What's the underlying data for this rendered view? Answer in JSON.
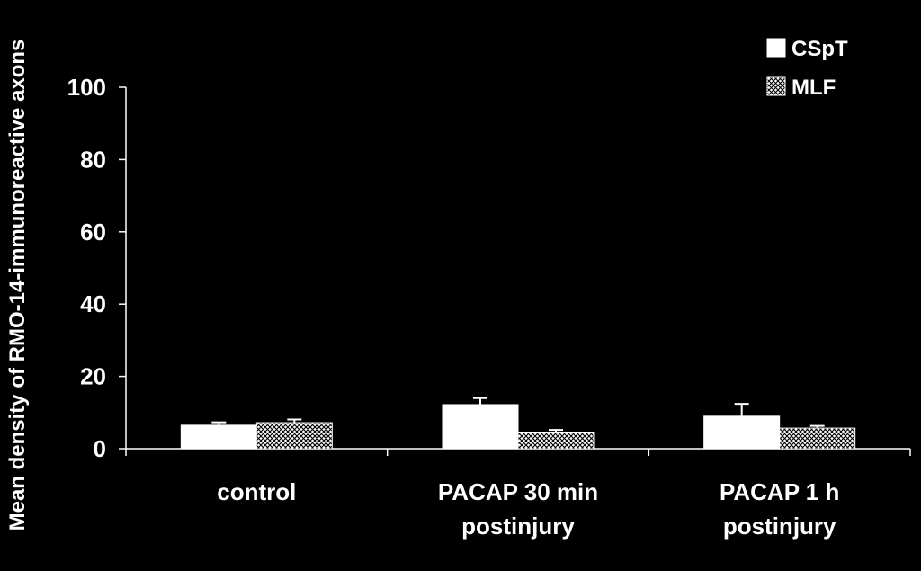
{
  "chart_data": {
    "type": "bar",
    "title": "",
    "ylabel": "Mean density of RMO-14-immunoreactive axons",
    "xlabel": "",
    "ylim": [
      0,
      100
    ],
    "yticks": [
      0,
      20,
      40,
      60,
      80,
      100
    ],
    "yticks_text": [
      "0",
      "20",
      "40",
      "60",
      "80",
      "100"
    ],
    "categories": [
      [
        "control"
      ],
      [
        "PACAP 30 min",
        "postinjury"
      ],
      [
        "PACAP 1 h",
        "postinjury"
      ]
    ],
    "series": [
      {
        "name": "CSpT",
        "values": [
          6.5,
          12.2,
          9.0
        ],
        "errors": [
          0.8,
          1.8,
          3.4
        ],
        "fill": "solid",
        "color": "#ffffff"
      },
      {
        "name": "MLF",
        "values": [
          7.2,
          4.6,
          5.7
        ],
        "errors": [
          0.9,
          0.6,
          0.6
        ],
        "fill": "crosshatch",
        "color": "#ffffff"
      }
    ],
    "legend_position": "top-right",
    "grid": false,
    "background": "#000000",
    "foreground": "#ffffff"
  }
}
